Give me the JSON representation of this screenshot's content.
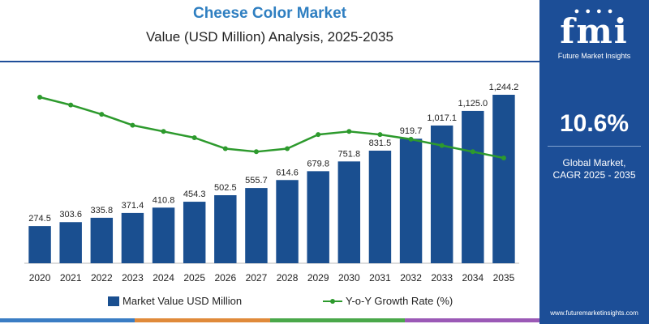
{
  "header": {
    "title": "Cheese Color Market",
    "subtitle": "Value (USD Million) Analysis, 2025-2035"
  },
  "sidebar": {
    "logo_text": "fmi",
    "logo_subtext": "Future Market Insights",
    "cagr_value": "10.6%",
    "cagr_label_line1": "Global Market,",
    "cagr_label_line2": "CAGR 2025 - 2035",
    "website": "www.futuremarketinsights.com"
  },
  "legend": {
    "bar_label": "Market Value USD Million",
    "line_label": "Y-o-Y Growth Rate (%)"
  },
  "colors": {
    "bar": "#1a4f90",
    "line": "#2d9a2d",
    "title": "#2f7fc1",
    "sidebar": "#1c4e97",
    "strip": [
      "#3a7dc4",
      "#e08a3a",
      "#4aa84a",
      "#9b59b6"
    ]
  },
  "chart_data": {
    "type": "bar",
    "categories": [
      "2020",
      "2021",
      "2022",
      "2023",
      "2024",
      "2025",
      "2026",
      "2027",
      "2028",
      "2029",
      "2030",
      "2031",
      "2032",
      "2033",
      "2034",
      "2035"
    ],
    "series": [
      {
        "name": "Market Value USD Million",
        "type": "bar",
        "values": [
          274.5,
          303.6,
          335.8,
          371.4,
          410.8,
          454.3,
          502.5,
          555.7,
          614.6,
          679.8,
          751.8,
          831.5,
          919.7,
          1017.1,
          1125.0,
          1244.2
        ],
        "labels": [
          "274.5",
          "303.6",
          "335.8",
          "371.4",
          "410.8",
          "454.3",
          "502.5",
          "555.7",
          "614.6",
          "679.8",
          "751.8",
          "831.5",
          "919.7",
          "1,017.1",
          "1,125.0",
          "1,244.2"
        ]
      },
      {
        "name": "Y-o-Y Growth Rate (%)",
        "type": "line",
        "values": [
          11.9,
          11.4,
          10.8,
          10.1,
          9.7,
          9.3,
          8.6,
          8.4,
          8.6,
          9.5,
          9.7,
          9.5,
          9.2,
          8.8,
          8.4,
          8.0
        ]
      }
    ],
    "ylim": [
      0,
      1300
    ],
    "y2lim": [
      6,
      13
    ],
    "grid": false,
    "legend": "bottom"
  }
}
